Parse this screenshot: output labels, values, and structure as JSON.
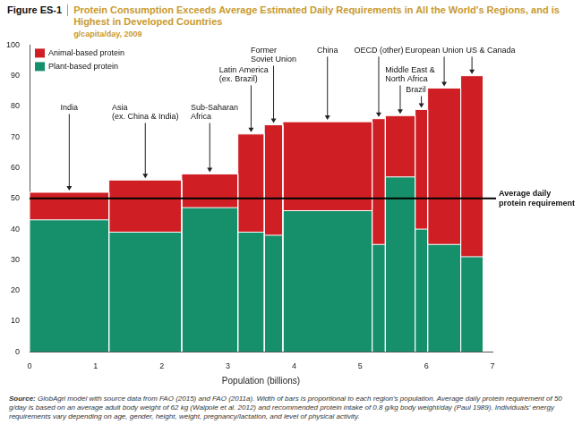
{
  "chart_data": {
    "type": "bar",
    "figure_label": "Figure ES-1",
    "title": "Protein Consumption Exceeds Average Estimated Daily Requirements in All the World's Regions, and is Highest in Developed Countries",
    "subtitle": "g/capita/day, 2009",
    "x_label": "Population (billions)",
    "categories": [
      "India",
      "Asia\n(ex. China & India)",
      "Sub-Saharan\nAfrica",
      "Latin America\n(ex. Brazil)",
      "Former\nSoviet Union",
      "China",
      "OECD (other)",
      "Middle East &\nNorth Africa",
      "Brazil",
      "European Union",
      "US & Canada"
    ],
    "widths": [
      1.2,
      1.1,
      0.85,
      0.4,
      0.28,
      1.35,
      0.2,
      0.45,
      0.19,
      0.5,
      0.34
    ],
    "series": [
      {
        "name": "Animal-based protein",
        "color": "#cf1f25",
        "values": [
          9,
          17,
          11,
          32,
          36,
          29,
          41,
          20,
          39,
          51,
          59
        ]
      },
      {
        "name": "Plant-based protein",
        "color": "#16906a",
        "values": [
          43,
          39,
          47,
          39,
          38,
          46,
          35,
          57,
          40,
          35,
          31
        ]
      }
    ],
    "stacked": true,
    "xlim": [
      0,
      7
    ],
    "xticks": [
      0,
      1,
      2,
      3,
      4,
      5,
      6,
      7
    ],
    "ylim": [
      0,
      100
    ],
    "yticks": [
      0,
      10,
      20,
      30,
      40,
      50,
      60,
      70,
      80,
      90,
      100
    ],
    "grid": false,
    "legend": "upper left",
    "reference_line": {
      "value": 50,
      "label": "Average daily\nprotein requirement"
    },
    "source": "Source: GlobAgri model with source data from FAO (2015) and FAO (2011a). Width of bars is proportional to each region's population. Average daily protein requirement of 50 g/day is based on an average adult body weight of 62 kg (Walpole et al. 2012) and recommended protein intake of 0.8 g/kg body weight/day (Paul 1989). Individuals' energy requirements vary depending on age, gender, height, weight, pregnancy/lactation, and level of physical activity."
  }
}
